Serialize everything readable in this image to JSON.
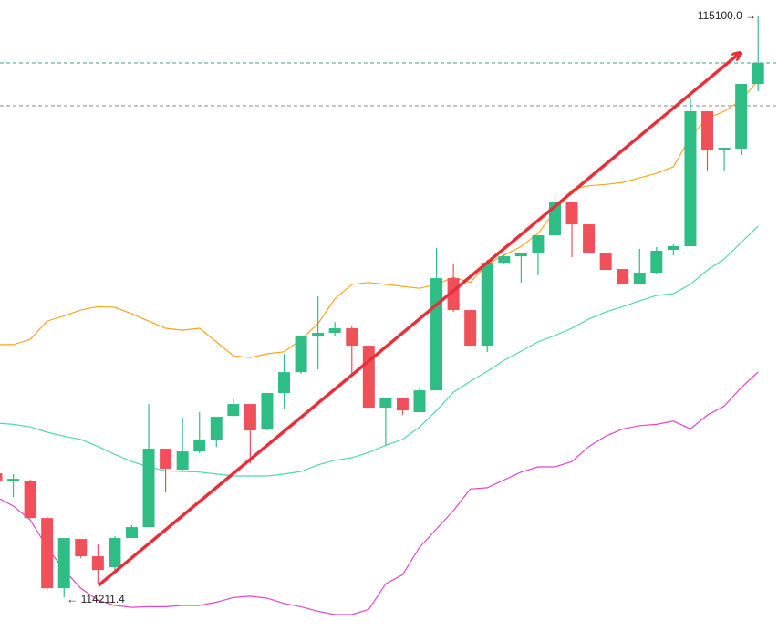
{
  "chart_data": {
    "type": "candlestick",
    "up_color": "#2ebd85",
    "down_color": "#f0505a",
    "open": [
      114401.1,
      114388.5,
      114389.9,
      114332.7,
      114225.3,
      114300.7,
      114274.2,
      114257.4,
      114302.1,
      114318.8,
      114438.8,
      114406.7,
      114434.6,
      114452.7,
      114489.0,
      114507.1,
      114468.1,
      114523.9,
      114555.9,
      114610.4,
      114615.9,
      114622.9,
      114596.4,
      114501.5,
      114516.9,
      114494.6,
      114528.0,
      114699.6,
      114650.8,
      114596.4,
      114723.3,
      114733.1,
      114738.7,
      114765.2,
      114815.4,
      114781.9,
      114737.3,
      114713.6,
      114691.3,
      114708.0,
      114742.9,
      114748.5,
      114954.9,
      114894.9,
      114897.7,
      114996.8
    ],
    "high": [
      114402.5,
      114399.7,
      114391.3,
      114335.5,
      114302.1,
      114300.7,
      114292.3,
      114304.8,
      114321.6,
      114507.1,
      114438.8,
      114486.2,
      114494.6,
      114487.6,
      114515.5,
      114507.1,
      114523.9,
      114583.8,
      114611.7,
      114671.7,
      114632.7,
      114627.1,
      114596.4,
      114516.9,
      114516.9,
      114530.8,
      114745.7,
      114720.6,
      114650.8,
      114727.5,
      114735.9,
      114738.7,
      114765.2,
      114829.4,
      114815.4,
      114781.9,
      114737.3,
      114713.6,
      114744.3,
      114747.1,
      114751.2,
      114982.8,
      114954.9,
      114899.1,
      114996.8,
      115100
    ],
    "low": [
      114385.8,
      114364.8,
      114332.7,
      114221.1,
      114211.4,
      114271.4,
      114232.3,
      114253.2,
      114302.1,
      114318.8,
      114371.8,
      114405.3,
      114431.8,
      114441.6,
      114487.6,
      114416.4,
      114466.7,
      114500.1,
      114553.2,
      114560.1,
      114611.7,
      114553.2,
      114501.5,
      114444.3,
      114490.4,
      114494.6,
      114528.0,
      114648.0,
      114596.4,
      114586.6,
      114720.6,
      114692.7,
      114703.8,
      114762.4,
      114731.7,
      114737.3,
      114712.2,
      114691.3,
      114691.3,
      114706.6,
      114734.5,
      114748.5,
      114862.8,
      114864.2,
      114888.0,
      114985.6
    ],
    "close": [
      114388.5,
      114392.7,
      114332.7,
      114225.3,
      114302.1,
      114274.2,
      114253.2,
      114302.1,
      114318.8,
      114438.8,
      114408.1,
      114434.6,
      114452.7,
      114487.6,
      114507.1,
      114466.7,
      114523.9,
      114555.9,
      114610.4,
      114615.9,
      114622.9,
      114596.4,
      114501.5,
      114516.9,
      114497.4,
      114528.0,
      114699.6,
      114650.8,
      114596.4,
      114723.3,
      114733.1,
      114738.7,
      114765.2,
      114815.4,
      114781.9,
      114737.3,
      114712.2,
      114691.3,
      114708.0,
      114741.5,
      114748.5,
      114954.9,
      114894.9,
      114899.1,
      114996.8,
      115028.9
    ],
    "lines": [
      {
        "color": "#f5a623",
        "values": [
          114598,
          114598,
          114606,
          114634,
          114642,
          114651,
          114656,
          114655,
          114645,
          114634,
          114623,
          114620,
          114623,
          114602,
          114581,
          114578,
          114584,
          114587,
          114606,
          114630,
          114668,
          114690,
          114693,
          114690,
          114687,
          114684,
          114690,
          114701,
          114693,
          114721,
          114735,
          114748,
          114768,
          114802,
          114835,
          114841,
          114843,
          114846,
          114853,
          114860,
          114870,
          114916,
          114944,
          114955,
          114972,
          115002
        ]
      },
      {
        "color": "#4fd6b4",
        "values": [
          114478,
          114476,
          114472,
          114464,
          114458,
          114453,
          114442,
          114430,
          114419,
          114411,
          114405,
          114404,
          114403,
          114400,
          114397,
          114397,
          114397,
          114400,
          114404,
          114414,
          114421,
          114425,
          114433,
          114444,
          114453,
          114472,
          114497,
          114525,
          114542,
          114557,
          114574,
          114588,
          114602,
          114612,
          114623,
          114637,
          114648,
          114656,
          114665,
          114673,
          114676,
          114690,
          114712,
          114729,
          114754,
          114779
        ]
      },
      {
        "color": "#e048c8",
        "values": [
          114365,
          114351,
          114330,
          114288,
          114253,
          114225,
          114207,
          114199,
          114196,
          114197,
          114197,
          114199,
          114199,
          114204,
          114211,
          114213,
          114210,
          114202,
          114197,
          114190,
          114185,
          114185,
          114193,
          114232,
          114246,
          114288,
          114316,
          114344,
          114377,
          114379,
          114391,
          114403,
          114411,
          114411,
          114419,
          114442,
          114458,
          114469,
          114474,
          114476,
          114481,
          114469,
          114490,
          114504,
          114532,
          114556
        ]
      }
    ],
    "price_lines": [
      {
        "value": 115028.9,
        "color": "#2aa89a"
      },
      {
        "value": 114963.3,
        "color": "#8a8a8a"
      }
    ],
    "max_label": "115100.0 →",
    "min_label": "← 114211.4"
  }
}
